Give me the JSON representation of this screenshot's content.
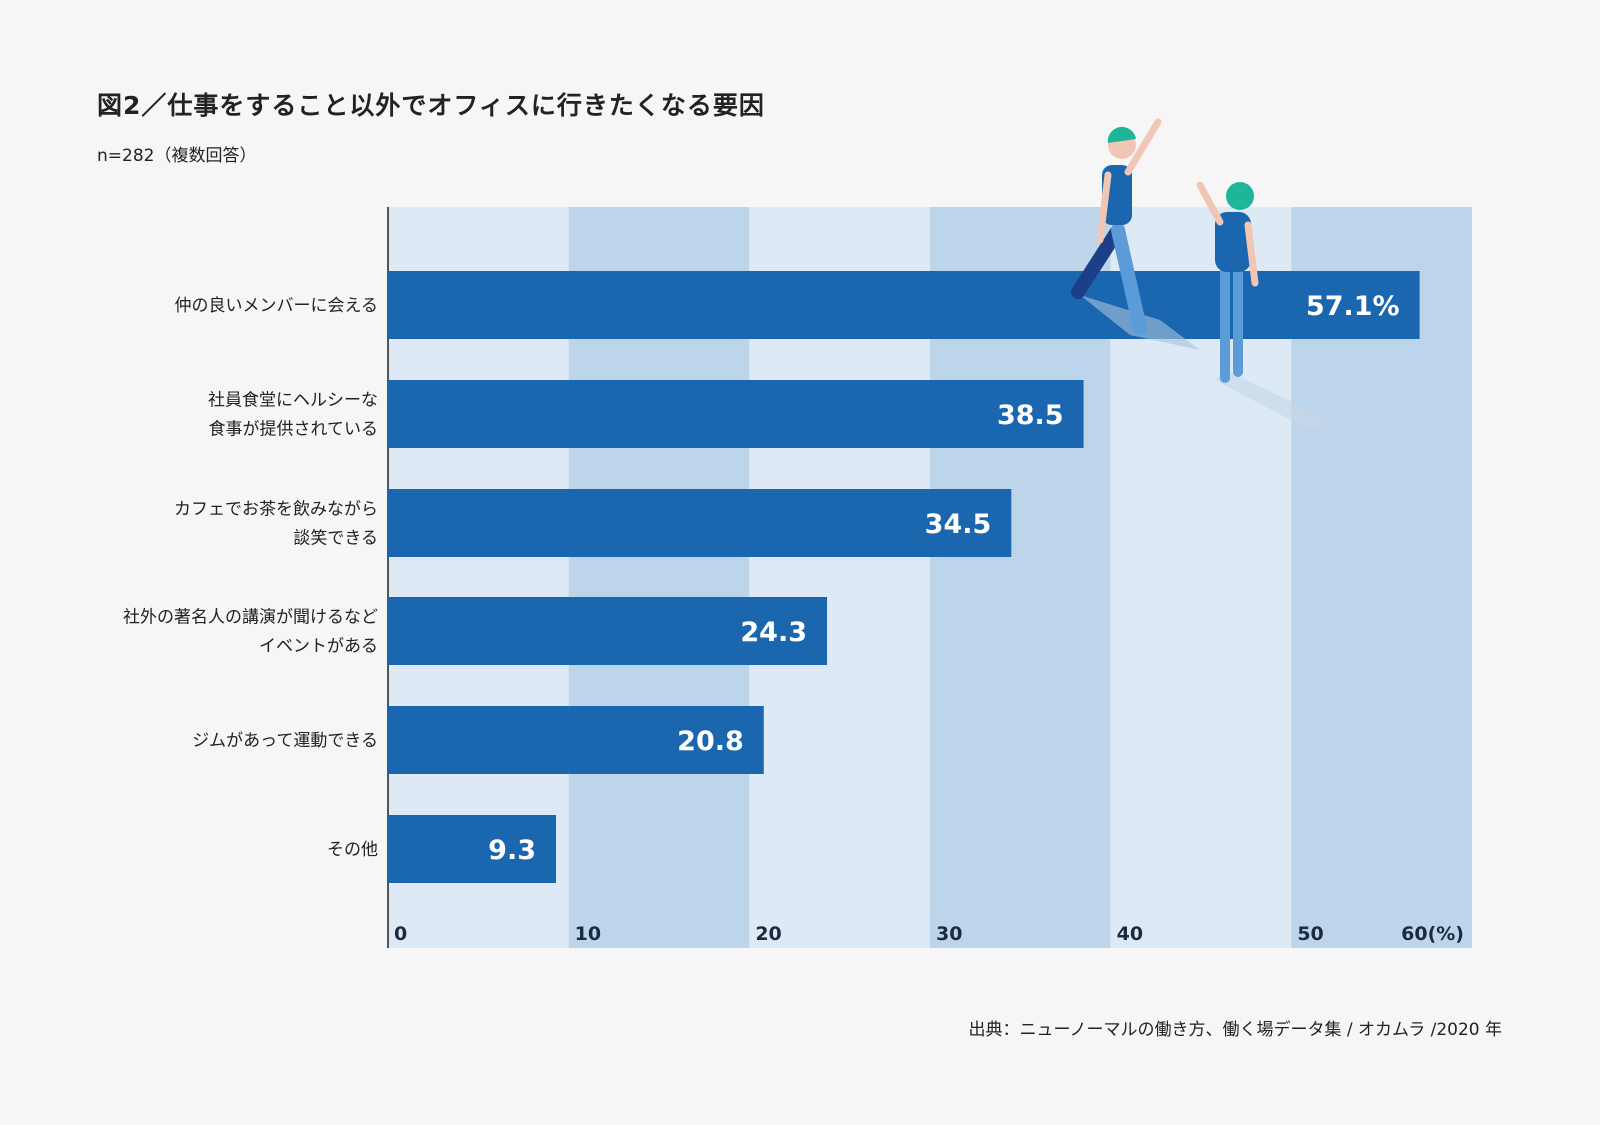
{
  "chart_data": {
    "type": "bar",
    "orientation": "horizontal",
    "title": "図2／仕事をすること以外でオフィスに行きたくなる要因",
    "subtitle": "n=282（複数回答）",
    "categories": [
      [
        "仲の良いメンバーに会える"
      ],
      [
        "社員食堂にヘルシーな",
        "食事が提供されている"
      ],
      [
        "カフェでお茶を飲みながら",
        "談笑できる"
      ],
      [
        "社外の著名人の講演が聞けるなど",
        "イベントがある"
      ],
      [
        "ジムがあって運動できる"
      ],
      [
        "その他"
      ]
    ],
    "values": [
      57.1,
      38.5,
      34.5,
      24.3,
      20.8,
      9.3
    ],
    "value_labels": [
      "57.1%",
      "38.5",
      "34.5",
      "24.3",
      "20.8",
      "9.3"
    ],
    "xlim": [
      0,
      60
    ],
    "ticks": [
      "0",
      "10",
      "20",
      "30",
      "40",
      "50",
      "60(%)"
    ],
    "xlabel": "",
    "ylabel": "",
    "grid": "alternating bands",
    "colors": {
      "bar": "#1a67b0",
      "band_light": "#dde9f5",
      "band_dark": "#bdd5ea"
    }
  },
  "source": "出典：ニューノーマルの働き方、働く場データ集 / オカムラ /2020 年"
}
